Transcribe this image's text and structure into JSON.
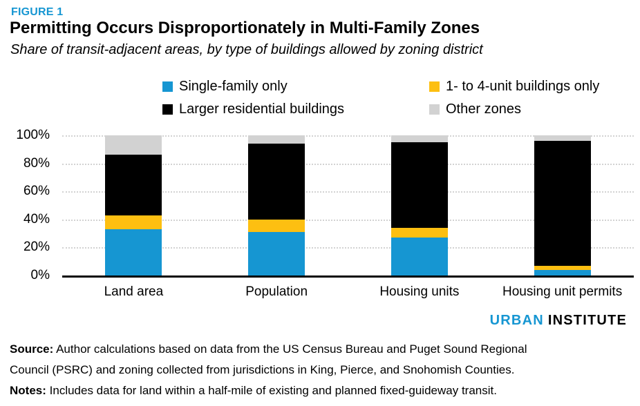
{
  "figure_label": "FIGURE 1",
  "title": "Permitting Occurs Disproportionately in Multi-Family Zones",
  "subtitle": "Share of transit-adjacent areas, by type of buildings allowed by zoning district",
  "colors": {
    "brand_blue": "#1696d2",
    "yellow": "#fdbf11",
    "black": "#000000",
    "gray": "#d2d2d2",
    "gridline": "#d2d2d2"
  },
  "chart_data": {
    "type": "bar",
    "stacked": true,
    "title": "Permitting Occurs Disproportionately in Multi-Family Zones",
    "subtitle": "Share of transit-adjacent areas, by type of buildings allowed by zoning district",
    "categories": [
      "Land area",
      "Population",
      "Housing units",
      "Housing unit permits"
    ],
    "series": [
      {
        "name": "Single-family only",
        "color": "#1696d2",
        "values": [
          33,
          31,
          27,
          4
        ]
      },
      {
        "name": "1- to 4-unit buildings only",
        "color": "#fdbf11",
        "values": [
          10,
          9,
          7,
          3
        ]
      },
      {
        "name": "Larger residential buildings",
        "color": "#000000",
        "values": [
          43,
          54,
          61,
          89
        ]
      },
      {
        "name": "Other zones",
        "color": "#d2d2d2",
        "values": [
          14,
          6,
          5,
          4
        ]
      }
    ],
    "xlabel": "",
    "ylabel": "",
    "y_ticks": [
      "0%",
      "20%",
      "40%",
      "60%",
      "80%",
      "100%"
    ],
    "ylim": [
      0,
      100
    ],
    "grid": "horizontal dotted",
    "legend_position": "top"
  },
  "branding": {
    "urban": "URBAN",
    "institute": "INSTITUTE"
  },
  "footer": {
    "source_label": "Source:",
    "source_text": "Author calculations based on data from the US Census Bureau and Puget Sound Regional\nCouncil (PSRC) and zoning collected from jurisdictions in King, Pierce, and Snohomish Counties.",
    "notes_label": "Notes:",
    "notes_text": "Includes data for land within a half-mile of existing and planned fixed-guideway transit."
  }
}
